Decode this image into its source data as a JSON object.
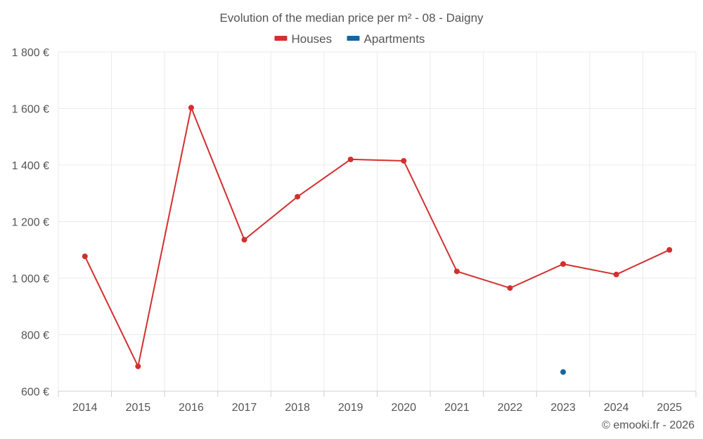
{
  "chart_data": {
    "type": "line",
    "title": "Evolution of the median price per m² - 08 - Daigny",
    "categories": [
      "2014",
      "2015",
      "2016",
      "2017",
      "2018",
      "2019",
      "2020",
      "2021",
      "2022",
      "2023",
      "2024",
      "2025"
    ],
    "series": [
      {
        "name": "Houses",
        "color": "#d32f2f",
        "values": [
          1077,
          688,
          1603,
          1136,
          1288,
          1420,
          1415,
          1024,
          965,
          1050,
          1013,
          1100
        ]
      },
      {
        "name": "Apartments",
        "color": "#1565a0",
        "values": [
          null,
          null,
          null,
          null,
          null,
          null,
          null,
          null,
          null,
          668,
          null,
          null
        ]
      }
    ],
    "ylim": [
      600,
      1800
    ],
    "yticks": [
      600,
      800,
      1000,
      1200,
      1400,
      1600,
      1800
    ],
    "ytick_labels": [
      "600 €",
      "800 €",
      "1 000 €",
      "1 200 €",
      "1 400 €",
      "1 600 €",
      "1 800 €"
    ],
    "xlabel": "",
    "ylabel": "",
    "grid": true,
    "legend_position": "top-center"
  },
  "credit": "© emooki.fr - 2026"
}
